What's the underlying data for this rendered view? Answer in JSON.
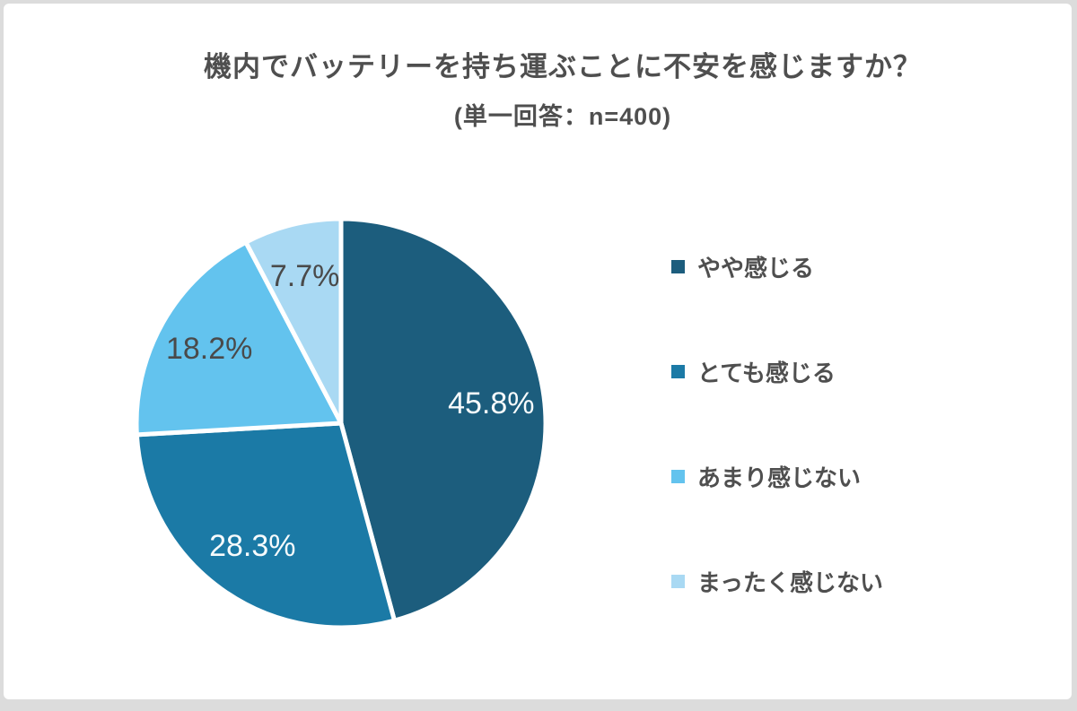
{
  "header": {
    "title": "機内でバッテリーを持ち運ぶことに不安を感じますか？",
    "subtitle": "(単一回答：n=400)"
  },
  "colors": {
    "card_background": "#ffffff",
    "frame_border": "#dcdcdc",
    "heading_text": "#4f4f4f",
    "slice_gap": "#ffffff"
  },
  "chart_data": {
    "type": "pie",
    "title": "機内でバッテリーを持ち運ぶことに不安を感じますか？",
    "subtitle": "(単一回答：n=400)",
    "sample_size_label": "n=400",
    "start_angle_deg": 0,
    "direction": "clockwise",
    "legend_position": "right",
    "slices": [
      {
        "label": "やや感じる",
        "value": 45.8,
        "display": "45.8%",
        "color": "#1c5d7d",
        "label_color": "#f7fbfc"
      },
      {
        "label": "とても感じる",
        "value": 28.3,
        "display": "28.3%",
        "color": "#1b7aa6",
        "label_color": "#f7fbfc"
      },
      {
        "label": "あまり感じない",
        "value": 18.2,
        "display": "18.2%",
        "color": "#63c3ee",
        "label_color": "#4a4a4a"
      },
      {
        "label": "まったく感じない",
        "value": 7.7,
        "display": "7.7%",
        "color": "#a9d9f3",
        "label_color": "#4a4a4a"
      }
    ]
  }
}
